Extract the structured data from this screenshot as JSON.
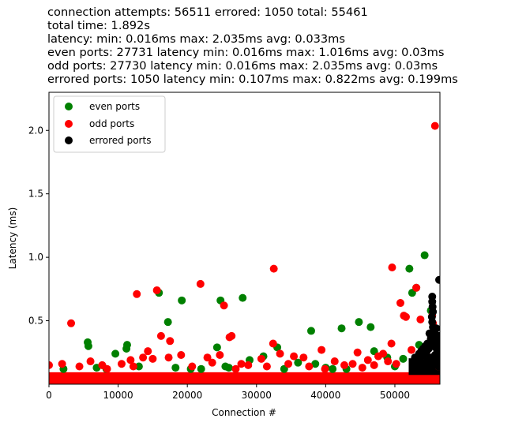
{
  "chart_data": {
    "type": "scatter",
    "title_lines": [
      "connection attempts: 56511 errored: 1050 total: 55461",
      "total time: 1.892s",
      "latency: min: 0.016ms max: 2.035ms avg: 0.033ms",
      "even ports: 27731 latency min: 0.016ms max: 1.016ms avg: 0.03ms",
      "odd ports: 27730 latency min: 0.016ms max: 2.035ms avg: 0.03ms",
      "errored ports: 1050 latency min: 0.107ms max: 0.822ms avg: 0.199ms"
    ],
    "xlabel": "Connection #",
    "ylabel": "Latency (ms)",
    "xlim": [
      0,
      56511
    ],
    "ylim": [
      0.0,
      2.3
    ],
    "xticks": [
      0,
      10000,
      20000,
      30000,
      40000,
      50000
    ],
    "yticks": [
      0.5,
      1.0,
      1.5,
      2.0
    ],
    "xtick_labels": [
      "0",
      "10000",
      "20000",
      "30000",
      "40000",
      "50000"
    ],
    "ytick_labels": [
      "0.5",
      "1.0",
      "1.5",
      "2.0"
    ],
    "legend_position": "upper-left",
    "series": [
      {
        "name": "even ports",
        "color": "#008000",
        "points": [
          [
            5600,
            0.33
          ],
          [
            5700,
            0.3
          ],
          [
            9600,
            0.24
          ],
          [
            11300,
            0.31
          ],
          [
            11200,
            0.28
          ],
          [
            15900,
            0.72
          ],
          [
            17200,
            0.49
          ],
          [
            19200,
            0.66
          ],
          [
            24800,
            0.66
          ],
          [
            28000,
            0.68
          ],
          [
            24300,
            0.29
          ],
          [
            33000,
            0.29
          ],
          [
            37900,
            0.42
          ],
          [
            42300,
            0.44
          ],
          [
            44800,
            0.49
          ],
          [
            46500,
            0.45
          ],
          [
            52100,
            0.91
          ],
          [
            54300,
            1.016
          ],
          [
            53100,
            0.76
          ],
          [
            52500,
            0.72
          ],
          [
            55200,
            0.58
          ],
          [
            51200,
            0.2
          ],
          [
            53500,
            0.31
          ],
          [
            54800,
            0.3
          ],
          [
            31000,
            0.22
          ],
          [
            36000,
            0.17
          ],
          [
            47000,
            0.26
          ],
          [
            38500,
            0.16
          ],
          [
            48900,
            0.21
          ],
          [
            56200,
            0.27
          ],
          [
            8300,
            0.12
          ],
          [
            13000,
            0.14
          ],
          [
            20500,
            0.12
          ],
          [
            22000,
            0.12
          ],
          [
            26000,
            0.13
          ],
          [
            29000,
            0.19
          ],
          [
            34000,
            0.12
          ],
          [
            40000,
            0.13
          ],
          [
            43000,
            0.12
          ],
          [
            50000,
            0.14
          ],
          [
            2100,
            0.12
          ],
          [
            6900,
            0.13
          ],
          [
            18300,
            0.13
          ],
          [
            25500,
            0.14
          ],
          [
            41000,
            0.12
          ]
        ]
      },
      {
        "name": "odd ports",
        "color": "#ff0000",
        "points": [
          [
            55800,
            2.035
          ],
          [
            3200,
            0.48
          ],
          [
            12700,
            0.71
          ],
          [
            15600,
            0.74
          ],
          [
            21900,
            0.79
          ],
          [
            25300,
            0.62
          ],
          [
            26100,
            0.37
          ],
          [
            26400,
            0.38
          ],
          [
            17500,
            0.34
          ],
          [
            16200,
            0.38
          ],
          [
            32500,
            0.91
          ],
          [
            49600,
            0.92
          ],
          [
            50800,
            0.64
          ],
          [
            51300,
            0.54
          ],
          [
            51600,
            0.53
          ],
          [
            53100,
            0.76
          ],
          [
            53700,
            0.51
          ],
          [
            55400,
            0.54
          ],
          [
            55500,
            0.48
          ],
          [
            32400,
            0.32
          ],
          [
            39400,
            0.27
          ],
          [
            49500,
            0.32
          ],
          [
            14300,
            0.26
          ],
          [
            13600,
            0.21
          ],
          [
            10500,
            0.16
          ],
          [
            1900,
            0.16
          ],
          [
            6000,
            0.18
          ],
          [
            19100,
            0.23
          ],
          [
            22900,
            0.21
          ],
          [
            24700,
            0.23
          ],
          [
            27800,
            0.16
          ],
          [
            30700,
            0.2
          ],
          [
            33400,
            0.24
          ],
          [
            35400,
            0.22
          ],
          [
            36800,
            0.21
          ],
          [
            41300,
            0.18
          ],
          [
            42700,
            0.15
          ],
          [
            44600,
            0.25
          ],
          [
            46100,
            0.19
          ],
          [
            47600,
            0.22
          ],
          [
            48300,
            0.24
          ],
          [
            52400,
            0.27
          ],
          [
            4400,
            0.14
          ],
          [
            7700,
            0.15
          ],
          [
            12200,
            0.14
          ],
          [
            20700,
            0.14
          ],
          [
            28800,
            0.15
          ],
          [
            37600,
            0.14
          ],
          [
            45300,
            0.13
          ],
          [
            50200,
            0.16
          ],
          [
            0,
            0.15
          ],
          [
            8400,
            0.12
          ],
          [
            11800,
            0.19
          ],
          [
            15000,
            0.2
          ],
          [
            17300,
            0.21
          ],
          [
            23600,
            0.17
          ],
          [
            27000,
            0.12
          ],
          [
            31500,
            0.14
          ],
          [
            34600,
            0.16
          ],
          [
            39900,
            0.12
          ],
          [
            43900,
            0.16
          ],
          [
            47000,
            0.15
          ],
          [
            49000,
            0.18
          ],
          [
            54200,
            0.22
          ],
          [
            54600,
            0.26
          ],
          [
            56300,
            0.14
          ]
        ]
      },
      {
        "name": "errored ports",
        "color": "#000000",
        "points": [
          [
            56400,
            0.822
          ],
          [
            55400,
            0.69
          ],
          [
            55400,
            0.65
          ],
          [
            55450,
            0.61
          ],
          [
            55500,
            0.57
          ],
          [
            55350,
            0.53
          ],
          [
            55400,
            0.49
          ],
          [
            55500,
            0.45
          ],
          [
            55600,
            0.41
          ],
          [
            55300,
            0.37
          ],
          [
            55700,
            0.35
          ],
          [
            55200,
            0.33
          ],
          [
            55600,
            0.31
          ],
          [
            55900,
            0.29
          ],
          [
            56100,
            0.27
          ],
          [
            56300,
            0.25
          ],
          [
            55800,
            0.23
          ],
          [
            54900,
            0.28
          ],
          [
            54600,
            0.26
          ],
          [
            54200,
            0.24
          ],
          [
            53900,
            0.22
          ],
          [
            53600,
            0.2
          ],
          [
            53200,
            0.18
          ],
          [
            52900,
            0.21
          ],
          [
            52600,
            0.17
          ],
          [
            54800,
            0.19
          ],
          [
            54500,
            0.17
          ],
          [
            55100,
            0.21
          ],
          [
            55700,
            0.19
          ],
          [
            56000,
            0.17
          ],
          [
            56300,
            0.2
          ],
          [
            56400,
            0.38
          ],
          [
            56200,
            0.34
          ],
          [
            55900,
            0.32
          ],
          [
            55200,
            0.36
          ],
          [
            55000,
            0.4
          ],
          [
            54700,
            0.32
          ],
          [
            54400,
            0.3
          ],
          [
            54100,
            0.28
          ],
          [
            53800,
            0.26
          ],
          [
            53500,
            0.24
          ],
          [
            56100,
            0.22
          ],
          [
            55500,
            0.15
          ],
          [
            56300,
            0.14
          ],
          [
            54000,
            0.15
          ],
          [
            52800,
            0.14
          ],
          [
            53300,
            0.15
          ],
          [
            56450,
            0.29
          ],
          [
            56000,
            0.44
          ],
          [
            55800,
            0.4
          ]
        ]
      }
    ],
    "bands": [
      {
        "series": "odd ports",
        "color": "#ff0000",
        "x_from": 0,
        "x_to": 56511,
        "y_from": 0.016,
        "y_to": 0.06
      },
      {
        "series": "errored ports",
        "color": "#000000",
        "x_from": 52000,
        "x_to": 56511,
        "y_from": 0.107,
        "y_to": 0.17
      }
    ]
  }
}
